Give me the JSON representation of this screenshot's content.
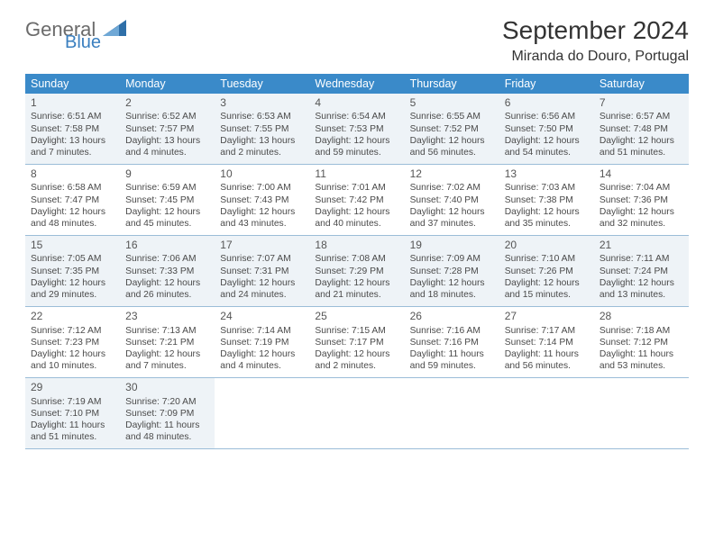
{
  "brand": {
    "part1": "General",
    "part2": "Blue",
    "logo_color": "#2f6fa8"
  },
  "title": "September 2024",
  "location": "Miranda do Douro, Portugal",
  "header_bg": "#3a8ac9",
  "shade_bg": "#eef3f7",
  "border_color": "#9bbdd8",
  "day_headers": [
    "Sunday",
    "Monday",
    "Tuesday",
    "Wednesday",
    "Thursday",
    "Friday",
    "Saturday"
  ],
  "weeks": [
    {
      "shaded": true,
      "days": [
        {
          "n": "1",
          "sr": "Sunrise: 6:51 AM",
          "ss": "Sunset: 7:58 PM",
          "dl1": "Daylight: 13 hours",
          "dl2": "and 7 minutes."
        },
        {
          "n": "2",
          "sr": "Sunrise: 6:52 AM",
          "ss": "Sunset: 7:57 PM",
          "dl1": "Daylight: 13 hours",
          "dl2": "and 4 minutes."
        },
        {
          "n": "3",
          "sr": "Sunrise: 6:53 AM",
          "ss": "Sunset: 7:55 PM",
          "dl1": "Daylight: 13 hours",
          "dl2": "and 2 minutes."
        },
        {
          "n": "4",
          "sr": "Sunrise: 6:54 AM",
          "ss": "Sunset: 7:53 PM",
          "dl1": "Daylight: 12 hours",
          "dl2": "and 59 minutes."
        },
        {
          "n": "5",
          "sr": "Sunrise: 6:55 AM",
          "ss": "Sunset: 7:52 PM",
          "dl1": "Daylight: 12 hours",
          "dl2": "and 56 minutes."
        },
        {
          "n": "6",
          "sr": "Sunrise: 6:56 AM",
          "ss": "Sunset: 7:50 PM",
          "dl1": "Daylight: 12 hours",
          "dl2": "and 54 minutes."
        },
        {
          "n": "7",
          "sr": "Sunrise: 6:57 AM",
          "ss": "Sunset: 7:48 PM",
          "dl1": "Daylight: 12 hours",
          "dl2": "and 51 minutes."
        }
      ]
    },
    {
      "shaded": false,
      "days": [
        {
          "n": "8",
          "sr": "Sunrise: 6:58 AM",
          "ss": "Sunset: 7:47 PM",
          "dl1": "Daylight: 12 hours",
          "dl2": "and 48 minutes."
        },
        {
          "n": "9",
          "sr": "Sunrise: 6:59 AM",
          "ss": "Sunset: 7:45 PM",
          "dl1": "Daylight: 12 hours",
          "dl2": "and 45 minutes."
        },
        {
          "n": "10",
          "sr": "Sunrise: 7:00 AM",
          "ss": "Sunset: 7:43 PM",
          "dl1": "Daylight: 12 hours",
          "dl2": "and 43 minutes."
        },
        {
          "n": "11",
          "sr": "Sunrise: 7:01 AM",
          "ss": "Sunset: 7:42 PM",
          "dl1": "Daylight: 12 hours",
          "dl2": "and 40 minutes."
        },
        {
          "n": "12",
          "sr": "Sunrise: 7:02 AM",
          "ss": "Sunset: 7:40 PM",
          "dl1": "Daylight: 12 hours",
          "dl2": "and 37 minutes."
        },
        {
          "n": "13",
          "sr": "Sunrise: 7:03 AM",
          "ss": "Sunset: 7:38 PM",
          "dl1": "Daylight: 12 hours",
          "dl2": "and 35 minutes."
        },
        {
          "n": "14",
          "sr": "Sunrise: 7:04 AM",
          "ss": "Sunset: 7:36 PM",
          "dl1": "Daylight: 12 hours",
          "dl2": "and 32 minutes."
        }
      ]
    },
    {
      "shaded": true,
      "days": [
        {
          "n": "15",
          "sr": "Sunrise: 7:05 AM",
          "ss": "Sunset: 7:35 PM",
          "dl1": "Daylight: 12 hours",
          "dl2": "and 29 minutes."
        },
        {
          "n": "16",
          "sr": "Sunrise: 7:06 AM",
          "ss": "Sunset: 7:33 PM",
          "dl1": "Daylight: 12 hours",
          "dl2": "and 26 minutes."
        },
        {
          "n": "17",
          "sr": "Sunrise: 7:07 AM",
          "ss": "Sunset: 7:31 PM",
          "dl1": "Daylight: 12 hours",
          "dl2": "and 24 minutes."
        },
        {
          "n": "18",
          "sr": "Sunrise: 7:08 AM",
          "ss": "Sunset: 7:29 PM",
          "dl1": "Daylight: 12 hours",
          "dl2": "and 21 minutes."
        },
        {
          "n": "19",
          "sr": "Sunrise: 7:09 AM",
          "ss": "Sunset: 7:28 PM",
          "dl1": "Daylight: 12 hours",
          "dl2": "and 18 minutes."
        },
        {
          "n": "20",
          "sr": "Sunrise: 7:10 AM",
          "ss": "Sunset: 7:26 PM",
          "dl1": "Daylight: 12 hours",
          "dl2": "and 15 minutes."
        },
        {
          "n": "21",
          "sr": "Sunrise: 7:11 AM",
          "ss": "Sunset: 7:24 PM",
          "dl1": "Daylight: 12 hours",
          "dl2": "and 13 minutes."
        }
      ]
    },
    {
      "shaded": false,
      "days": [
        {
          "n": "22",
          "sr": "Sunrise: 7:12 AM",
          "ss": "Sunset: 7:23 PM",
          "dl1": "Daylight: 12 hours",
          "dl2": "and 10 minutes."
        },
        {
          "n": "23",
          "sr": "Sunrise: 7:13 AM",
          "ss": "Sunset: 7:21 PM",
          "dl1": "Daylight: 12 hours",
          "dl2": "and 7 minutes."
        },
        {
          "n": "24",
          "sr": "Sunrise: 7:14 AM",
          "ss": "Sunset: 7:19 PM",
          "dl1": "Daylight: 12 hours",
          "dl2": "and 4 minutes."
        },
        {
          "n": "25",
          "sr": "Sunrise: 7:15 AM",
          "ss": "Sunset: 7:17 PM",
          "dl1": "Daylight: 12 hours",
          "dl2": "and 2 minutes."
        },
        {
          "n": "26",
          "sr": "Sunrise: 7:16 AM",
          "ss": "Sunset: 7:16 PM",
          "dl1": "Daylight: 11 hours",
          "dl2": "and 59 minutes."
        },
        {
          "n": "27",
          "sr": "Sunrise: 7:17 AM",
          "ss": "Sunset: 7:14 PM",
          "dl1": "Daylight: 11 hours",
          "dl2": "and 56 minutes."
        },
        {
          "n": "28",
          "sr": "Sunrise: 7:18 AM",
          "ss": "Sunset: 7:12 PM",
          "dl1": "Daylight: 11 hours",
          "dl2": "and 53 minutes."
        }
      ]
    },
    {
      "shaded": true,
      "days": [
        {
          "n": "29",
          "sr": "Sunrise: 7:19 AM",
          "ss": "Sunset: 7:10 PM",
          "dl1": "Daylight: 11 hours",
          "dl2": "and 51 minutes."
        },
        {
          "n": "30",
          "sr": "Sunrise: 7:20 AM",
          "ss": "Sunset: 7:09 PM",
          "dl1": "Daylight: 11 hours",
          "dl2": "and 48 minutes."
        },
        {
          "empty": true
        },
        {
          "empty": true
        },
        {
          "empty": true
        },
        {
          "empty": true
        },
        {
          "empty": true
        }
      ]
    }
  ]
}
